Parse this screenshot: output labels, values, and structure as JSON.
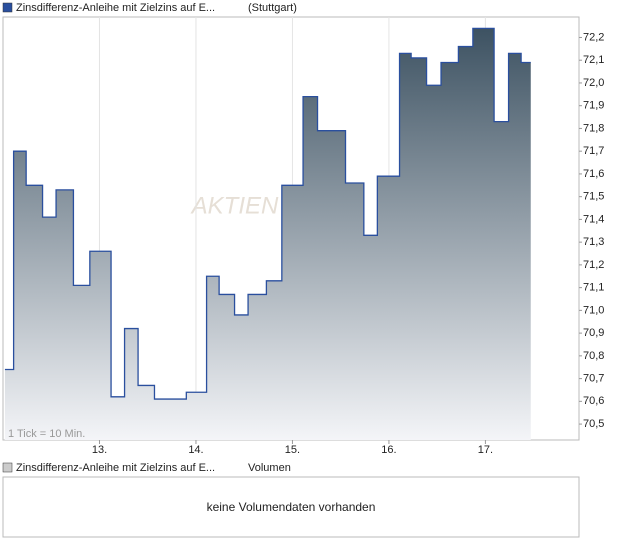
{
  "chart_data": {
    "type": "step-area",
    "legend": "Zinsdifferenz-Anleihe mit Zielzins auf E...",
    "exchange": "(Stuttgart)",
    "tick_note": "1 Tick = 10 Min.",
    "watermark": "AKTIEN",
    "color": "#2a4f9e",
    "fill_top": "#3d5262",
    "x": [
      12.02,
      12.11,
      12.24,
      12.41,
      12.55,
      12.73,
      12.9,
      13.12,
      13.26,
      13.4,
      13.57,
      13.9,
      14.11,
      14.24,
      14.4,
      14.54,
      14.73,
      14.89,
      15.11,
      15.26,
      15.55,
      15.74,
      15.88,
      16.11,
      16.23,
      16.39,
      16.54,
      16.72,
      16.87,
      17.09,
      17.24,
      17.37,
      17.47
    ],
    "values": [
      70.74,
      71.7,
      71.55,
      71.41,
      71.53,
      71.11,
      71.26,
      70.62,
      70.92,
      70.67,
      70.61,
      70.64,
      71.15,
      71.07,
      70.98,
      71.07,
      71.13,
      71.55,
      71.94,
      71.79,
      71.56,
      71.33,
      71.59,
      72.13,
      72.11,
      71.99,
      72.09,
      72.16,
      72.24,
      71.83,
      72.13,
      72.09,
      72.09
    ],
    "xlim": [
      12.0,
      17.97
    ],
    "xticks": [
      {
        "value": 13,
        "label": "13."
      },
      {
        "value": 14,
        "label": "14."
      },
      {
        "value": 15,
        "label": "15."
      },
      {
        "value": 16,
        "label": "16."
      },
      {
        "value": 17,
        "label": "17."
      }
    ],
    "ylim": [
      70.43,
      72.29
    ],
    "yticks": [
      {
        "value": 70.5,
        "label": "70,5"
      },
      {
        "value": 70.6,
        "label": "70,6"
      },
      {
        "value": 70.7,
        "label": "70,7"
      },
      {
        "value": 70.8,
        "label": "70,8"
      },
      {
        "value": 70.9,
        "label": "70,9"
      },
      {
        "value": 71.0,
        "label": "71,0"
      },
      {
        "value": 71.1,
        "label": "71,1"
      },
      {
        "value": 71.2,
        "label": "71,2"
      },
      {
        "value": 71.3,
        "label": "71,3"
      },
      {
        "value": 71.4,
        "label": "71,4"
      },
      {
        "value": 71.5,
        "label": "71,5"
      },
      {
        "value": 71.6,
        "label": "71,6"
      },
      {
        "value": 71.7,
        "label": "71,7"
      },
      {
        "value": 71.8,
        "label": "71,8"
      },
      {
        "value": 71.9,
        "label": "71,9"
      },
      {
        "value": 72.0,
        "label": "72,0"
      },
      {
        "value": 72.1,
        "label": "72,1"
      },
      {
        "value": 72.2,
        "label": "72,2"
      }
    ],
    "grid": true,
    "volume": {
      "legend": "Zinsdifferenz-Anleihe mit Zielzins auf E...",
      "label": "Volumen",
      "message": "keine Volumendaten vorhanden"
    }
  }
}
